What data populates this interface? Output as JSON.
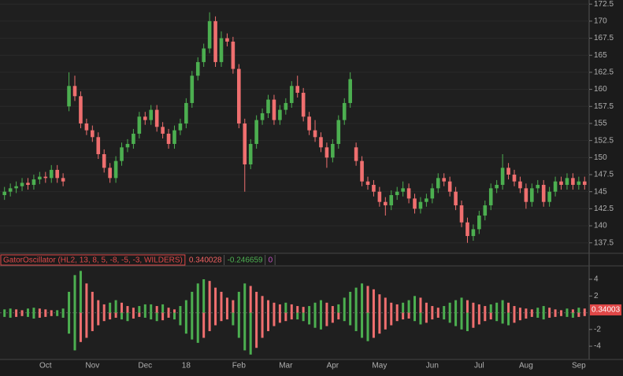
{
  "chart_data": [
    {
      "type": "candlestick",
      "categories": [
        null,
        null,
        null,
        null,
        null,
        null,
        null,
        "Oct",
        null,
        null,
        null,
        null,
        null,
        null,
        null,
        "Nov",
        null,
        null,
        null,
        null,
        null,
        null,
        null,
        null,
        "Dec",
        null,
        null,
        null,
        null,
        null,
        null,
        "18",
        null,
        null,
        null,
        null,
        null,
        null,
        null,
        null,
        "Feb",
        null,
        null,
        null,
        null,
        null,
        null,
        null,
        "Mar",
        null,
        null,
        null,
        null,
        null,
        null,
        null,
        "Apr",
        null,
        null,
        null,
        null,
        null,
        null,
        null,
        "May",
        null,
        null,
        null,
        null,
        null,
        null,
        null,
        null,
        "Jun",
        null,
        null,
        null,
        null,
        null,
        null,
        null,
        "Jul",
        null,
        null,
        null,
        null,
        null,
        null,
        null,
        "Aug",
        null,
        null,
        null,
        null,
        null,
        null,
        null,
        null,
        "Sep",
        null
      ],
      "ohlc": [
        [
          144.5,
          145.7,
          143.8,
          145.0
        ],
        [
          145.0,
          146.2,
          144.3,
          145.5
        ],
        [
          145.5,
          146.5,
          144.8,
          145.8
        ],
        [
          145.8,
          147.0,
          145.1,
          146.3
        ],
        [
          146.3,
          147.0,
          145.3,
          146.0
        ],
        [
          146.0,
          147.5,
          145.3,
          146.8
        ],
        [
          146.8,
          147.9,
          146.1,
          147.2
        ],
        [
          147.2,
          147.9,
          146.3,
          147.0
        ],
        [
          147.0,
          148.9,
          146.3,
          148.2
        ],
        [
          148.2,
          148.9,
          146.3,
          147.0
        ],
        [
          147.0,
          147.7,
          145.8,
          146.5
        ],
        [
          157.5,
          162.5,
          156.8,
          160.5
        ],
        [
          160.5,
          162.0,
          158.3,
          159.0
        ],
        [
          159.0,
          159.7,
          154.3,
          155.0
        ],
        [
          155.0,
          155.7,
          153.3,
          154.0
        ],
        [
          154.0,
          154.7,
          152.3,
          153.0
        ],
        [
          153.0,
          153.7,
          149.8,
          150.5
        ],
        [
          150.5,
          151.2,
          147.8,
          148.5
        ],
        [
          148.5,
          149.2,
          146.3,
          147.0
        ],
        [
          147.0,
          150.2,
          146.3,
          149.5
        ],
        [
          149.5,
          152.2,
          148.8,
          151.5
        ],
        [
          151.5,
          152.7,
          150.8,
          152.0
        ],
        [
          152.0,
          154.2,
          151.3,
          153.5
        ],
        [
          153.5,
          156.7,
          152.8,
          156.0
        ],
        [
          156.0,
          156.7,
          154.8,
          155.5
        ],
        [
          155.5,
          157.7,
          154.8,
          157.0
        ],
        [
          157.0,
          157.7,
          153.8,
          154.5
        ],
        [
          154.5,
          155.2,
          152.8,
          153.5
        ],
        [
          153.5,
          154.2,
          151.3,
          152.0
        ],
        [
          152.0,
          154.7,
          151.3,
          154.0
        ],
        [
          154.0,
          155.7,
          153.3,
          155.0
        ],
        [
          155.0,
          158.7,
          154.3,
          158.0
        ],
        [
          158.0,
          162.7,
          157.3,
          162.0
        ],
        [
          162.0,
          164.7,
          161.3,
          164.0
        ],
        [
          164.0,
          166.7,
          163.3,
          166.0
        ],
        [
          166.0,
          171.3,
          165.3,
          170.0
        ],
        [
          170.0,
          170.7,
          163.3,
          164.0
        ],
        [
          164.0,
          168.5,
          163.3,
          167.5
        ],
        [
          167.5,
          168.2,
          166.3,
          167.0
        ],
        [
          167.0,
          167.7,
          162.3,
          163.0
        ],
        [
          163.0,
          163.7,
          154.3,
          155.0
        ],
        [
          155.0,
          155.7,
          145.0,
          149.0
        ],
        [
          149.0,
          152.7,
          148.3,
          152.0
        ],
        [
          152.0,
          156.2,
          151.3,
          155.5
        ],
        [
          155.5,
          157.2,
          154.8,
          156.5
        ],
        [
          156.5,
          159.2,
          155.8,
          158.5
        ],
        [
          158.5,
          159.2,
          154.8,
          155.5
        ],
        [
          155.5,
          157.7,
          154.8,
          157.0
        ],
        [
          157.0,
          158.7,
          156.3,
          158.0
        ],
        [
          158.0,
          161.2,
          157.3,
          160.5
        ],
        [
          160.5,
          162.0,
          158.8,
          159.5
        ],
        [
          159.5,
          160.2,
          155.3,
          156.0
        ],
        [
          156.0,
          156.7,
          153.3,
          154.0
        ],
        [
          154.0,
          155.5,
          152.3,
          153.0
        ],
        [
          153.0,
          153.7,
          150.8,
          151.5
        ],
        [
          151.5,
          152.2,
          148.5,
          150.0
        ],
        [
          150.0,
          152.7,
          149.3,
          152.0
        ],
        [
          152.0,
          156.2,
          151.3,
          155.5
        ],
        [
          155.5,
          158.7,
          154.8,
          158.0
        ],
        [
          158.0,
          162.5,
          157.3,
          161.5
        ],
        [
          151.5,
          152.2,
          148.8,
          149.5
        ],
        [
          149.5,
          150.2,
          145.8,
          146.5
        ],
        [
          146.5,
          147.2,
          145.3,
          146.0
        ],
        [
          146.0,
          146.7,
          144.3,
          145.0
        ],
        [
          145.0,
          145.7,
          142.8,
          143.5
        ],
        [
          143.5,
          144.2,
          141.5,
          143.0
        ],
        [
          143.0,
          145.2,
          142.3,
          144.5
        ],
        [
          144.5,
          145.7,
          143.8,
          145.0
        ],
        [
          145.0,
          146.5,
          144.3,
          145.5
        ],
        [
          145.5,
          146.2,
          143.3,
          144.0
        ],
        [
          144.0,
          144.7,
          141.8,
          142.5
        ],
        [
          142.5,
          144.2,
          141.8,
          143.5
        ],
        [
          143.5,
          144.7,
          142.8,
          144.0
        ],
        [
          144.0,
          146.2,
          143.3,
          145.5
        ],
        [
          145.5,
          147.7,
          144.8,
          147.0
        ],
        [
          147.0,
          147.7,
          145.8,
          146.5
        ],
        [
          146.5,
          147.2,
          144.3,
          145.0
        ],
        [
          145.0,
          145.7,
          142.3,
          143.0
        ],
        [
          143.0,
          143.7,
          139.8,
          140.5
        ],
        [
          140.5,
          141.2,
          137.5,
          138.5
        ],
        [
          138.5,
          140.2,
          137.8,
          139.5
        ],
        [
          139.5,
          142.2,
          138.8,
          141.5
        ],
        [
          141.5,
          143.7,
          140.8,
          143.0
        ],
        [
          143.0,
          146.2,
          142.3,
          145.5
        ],
        [
          145.5,
          146.7,
          144.8,
          146.0
        ],
        [
          146.0,
          150.5,
          145.3,
          148.5
        ],
        [
          148.5,
          149.2,
          146.8,
          147.5
        ],
        [
          147.5,
          148.2,
          145.8,
          146.5
        ],
        [
          146.5,
          147.2,
          144.8,
          145.5
        ],
        [
          145.5,
          146.2,
          142.5,
          143.5
        ],
        [
          143.5,
          146.2,
          142.8,
          145.5
        ],
        [
          145.5,
          146.7,
          144.8,
          146.0
        ],
        [
          146.0,
          146.7,
          142.8,
          143.5
        ],
        [
          143.5,
          145.7,
          142.8,
          145.0
        ],
        [
          145.0,
          147.2,
          144.3,
          146.5
        ],
        [
          146.5,
          147.2,
          145.3,
          146.0
        ],
        [
          146.0,
          147.7,
          145.3,
          147.0
        ],
        [
          147.0,
          147.7,
          145.3,
          146.0
        ],
        [
          146.0,
          147.2,
          145.3,
          146.5
        ],
        [
          146.5,
          147.2,
          145.3,
          146.0
        ]
      ],
      "up_color": "#4caf50",
      "down_color": "#ef6f6f",
      "ylim": [
        136.2,
        173.1
      ],
      "yticks": [
        137.5,
        140,
        142.5,
        145,
        147.5,
        150,
        152.5,
        155,
        157.5,
        160,
        162.5,
        165,
        167.5,
        170,
        172.5
      ],
      "grid": true
    },
    {
      "type": "gator",
      "title": "GatorOscillator (HL2, 13, 8, 5, -8, -5, -3, WILDERS)",
      "title_color": "#e04848",
      "readouts": [
        {
          "value": 0.340028,
          "color": "#f06060"
        },
        {
          "value": -0.246659,
          "color": "#4caf50"
        },
        {
          "value": 0,
          "color": "#c050c0"
        }
      ],
      "series": [
        {
          "values": [
            0.4,
            0.5,
            0.4,
            0.3,
            0.5,
            0.6,
            0.5,
            0.4,
            0.3,
            0.3,
            0.5,
            2.5,
            4.5,
            5.0,
            3.5,
            2.5,
            1.5,
            1.0,
            1.2,
            1.5,
            1.2,
            0.8,
            0.6,
            0.8,
            1.0,
            1.0,
            0.8,
            1.0,
            0.6,
            0.4,
            0.8,
            1.5,
            2.5,
            3.5,
            4.0,
            3.8,
            3.0,
            2.5,
            1.8,
            1.5,
            2.5,
            3.5,
            3.2,
            2.5,
            2.0,
            1.5,
            1.2,
            1.0,
            1.2,
            1.0,
            0.8,
            0.7,
            0.8,
            1.2,
            1.5,
            1.2,
            0.8,
            1.0,
            1.8,
            2.5,
            3.0,
            3.5,
            3.2,
            2.8,
            2.2,
            1.8,
            1.2,
            1.0,
            1.2,
            1.5,
            2.0,
            1.8,
            1.2,
            0.8,
            0.6,
            0.8,
            1.2,
            1.5,
            1.8,
            1.5,
            1.2,
            1.0,
            0.8,
            1.0,
            1.2,
            1.5,
            1.2,
            0.8,
            0.6,
            0.5,
            0.4,
            0.6,
            0.8,
            0.6,
            0.4,
            0.3,
            0.5,
            0.4,
            0.6,
            0.5
          ]
        },
        {
          "values": [
            -0.5,
            -0.6,
            -0.5,
            -0.4,
            -0.5,
            -0.7,
            -0.6,
            -0.5,
            -0.4,
            -0.4,
            -0.6,
            -2.5,
            -4.5,
            -3.5,
            -3.0,
            -2.2,
            -1.5,
            -1.0,
            -0.8,
            -0.6,
            -0.8,
            -1.0,
            -0.7,
            -0.5,
            -0.6,
            -0.8,
            -1.0,
            -0.9,
            -0.6,
            -0.8,
            -1.5,
            -2.5,
            -3.2,
            -3.6,
            -3.0,
            -2.2,
            -1.5,
            -1.0,
            -0.8,
            -1.5,
            -3.0,
            -4.5,
            -5.0,
            -4.2,
            -3.0,
            -2.2,
            -1.6,
            -1.2,
            -1.0,
            -0.8,
            -0.8,
            -1.0,
            -1.4,
            -1.8,
            -2.0,
            -1.6,
            -1.2,
            -0.8,
            -1.0,
            -1.5,
            -2.2,
            -3.0,
            -3.4,
            -3.0,
            -2.5,
            -2.0,
            -1.5,
            -1.0,
            -0.8,
            -0.7,
            -1.0,
            -1.4,
            -1.2,
            -0.8,
            -0.6,
            -0.8,
            -1.2,
            -1.6,
            -2.0,
            -2.2,
            -1.8,
            -1.4,
            -1.0,
            -0.8,
            -1.0,
            -1.3,
            -1.5,
            -1.2,
            -0.9,
            -0.7,
            -0.5,
            -0.6,
            -0.8,
            -0.6,
            -0.5,
            -0.4,
            -0.5,
            -0.6,
            -0.5,
            -0.4
          ]
        }
      ],
      "up_color": "#4caf50",
      "down_color": "#ef6f6f",
      "current_value": 0.34003,
      "ylim": [
        -5.4,
        5.6
      ],
      "yticks": [
        -4,
        -2,
        2,
        4
      ]
    }
  ]
}
